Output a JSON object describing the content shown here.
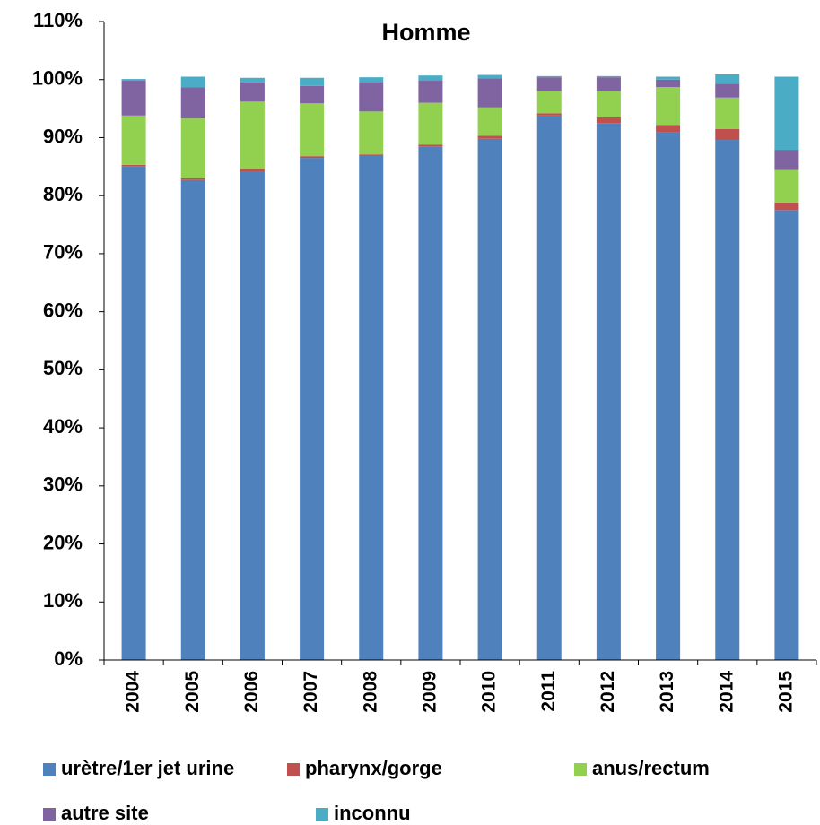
{
  "chart_data": {
    "type": "stacked_bar",
    "title": "Homme",
    "categories": [
      "2004",
      "2005",
      "2006",
      "2007",
      "2008",
      "2009",
      "2010",
      "2011",
      "2012",
      "2013",
      "2014",
      "2015"
    ],
    "series": [
      {
        "name": "urètre/1er jet urine",
        "color": "#4f81bd",
        "values": [
          85.1,
          82.7,
          84.2,
          86.5,
          86.9,
          88.5,
          89.8,
          93.8,
          92.5,
          90.9,
          89.6,
          77.5
        ]
      },
      {
        "name": "pharynx/gorge",
        "color": "#c0504d",
        "values": [
          0.2,
          0.3,
          0.4,
          0.3,
          0.2,
          0.3,
          0.5,
          0.4,
          1.0,
          1.3,
          1.9,
          1.3
        ]
      },
      {
        "name": "anus/rectum",
        "color": "#92d050",
        "values": [
          8.5,
          10.3,
          11.6,
          9.1,
          7.4,
          7.2,
          4.9,
          3.8,
          4.5,
          6.5,
          5.4,
          5.6
        ]
      },
      {
        "name": "autre site",
        "color": "#8064a2",
        "values": [
          6.0,
          5.4,
          3.3,
          3.0,
          5.1,
          3.8,
          5.0,
          2.4,
          2.4,
          1.3,
          2.4,
          3.5
        ]
      },
      {
        "name": "inconnu",
        "color": "#4bacc6",
        "values": [
          0.3,
          1.8,
          0.8,
          1.4,
          0.8,
          0.9,
          0.6,
          0.2,
          0.2,
          0.5,
          1.6,
          12.6
        ]
      }
    ],
    "ylim": [
      0,
      110
    ],
    "yticks": [
      {
        "value": 0,
        "label": "0%"
      },
      {
        "value": 10,
        "label": "10%"
      },
      {
        "value": 20,
        "label": "20%"
      },
      {
        "value": 30,
        "label": "30%"
      },
      {
        "value": 40,
        "label": "40%"
      },
      {
        "value": 50,
        "label": "50%"
      },
      {
        "value": 60,
        "label": "60%"
      },
      {
        "value": 70,
        "label": "70%"
      },
      {
        "value": 80,
        "label": "80%"
      },
      {
        "value": 90,
        "label": "90%"
      },
      {
        "value": 100,
        "label": "100%"
      },
      {
        "value": 110,
        "label": "110%"
      }
    ],
    "legend": "bottom"
  }
}
